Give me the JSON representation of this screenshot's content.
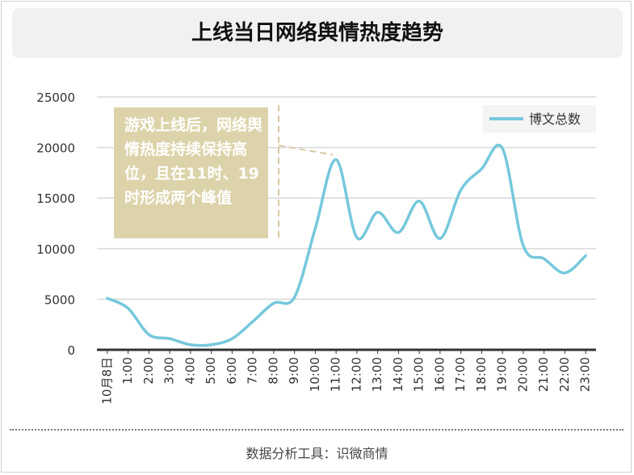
{
  "title": "上线当日网络舆情热度趋势",
  "source": "数据分析工具：识微商情",
  "annotation": "游戏上线后，网络舆情热度持续保持高位，且在11时、19时形成两个峰值",
  "colors": {
    "line": "#76c8dc",
    "annotation_bg": "#ddd3aa",
    "annotation_line": "#d8c9a6",
    "grid": "#d9d9d9",
    "axis": "#333333",
    "title_bg": "#f1f1f1"
  },
  "chart_data": {
    "type": "line",
    "title": "上线当日网络舆情热度趋势",
    "xlabel": "",
    "ylabel": "",
    "ylim": [
      0,
      25000
    ],
    "yticks": [
      0,
      5000,
      10000,
      15000,
      20000,
      25000
    ],
    "grid": true,
    "legend_position": "top-right",
    "categories": [
      "10月8日",
      "1:00",
      "2:00",
      "3:00",
      "4:00",
      "5:00",
      "6:00",
      "7:00",
      "8:00",
      "9:00",
      "10:00",
      "11:00",
      "12:00",
      "13:00",
      "14:00",
      "15:00",
      "16:00",
      "17:00",
      "18:00",
      "19:00",
      "20:00",
      "21:00",
      "22:00",
      "23:00"
    ],
    "series": [
      {
        "name": "博文总数",
        "values": [
          5100,
          4100,
          1500,
          1100,
          500,
          500,
          1100,
          2800,
          4600,
          5200,
          12000,
          18800,
          11100,
          13600,
          11600,
          14700,
          11000,
          15800,
          17900,
          19900,
          10300,
          9000,
          7600,
          9300
        ]
      }
    ]
  }
}
